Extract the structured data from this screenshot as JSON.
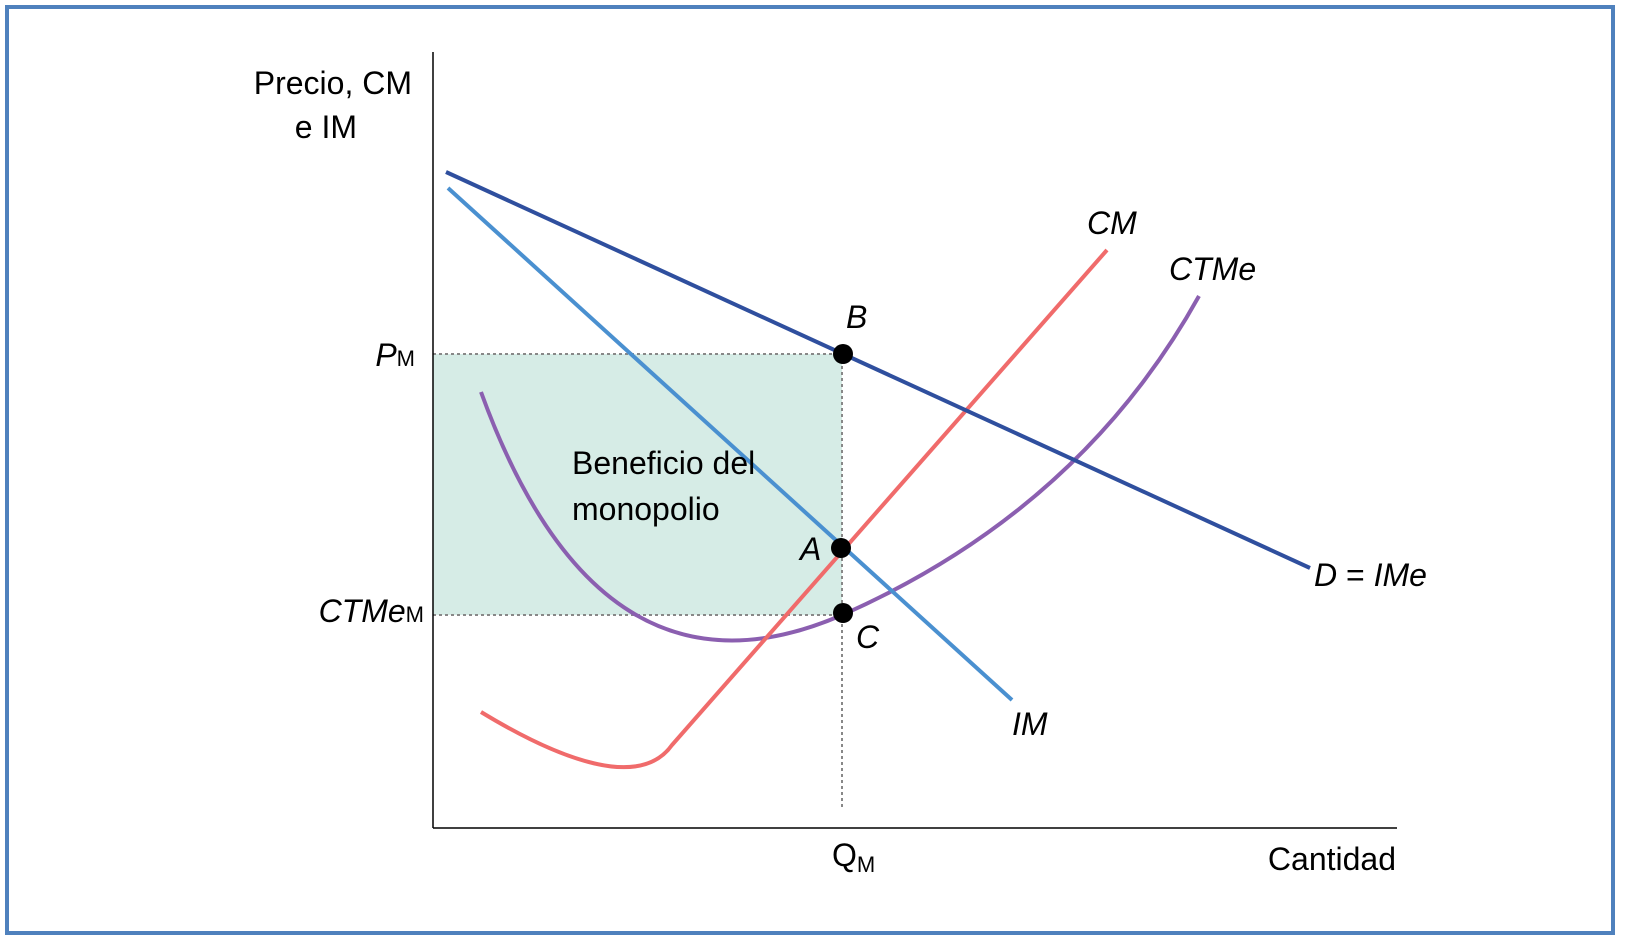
{
  "axes": {
    "y_label_line1": "Precio, CM",
    "y_label_line2": "e IM",
    "x_label": "Cantidad"
  },
  "ticks": {
    "pm_main": "P",
    "pm_sub": "M",
    "ctme_main": "CTMe",
    "ctme_sub": "M",
    "qm_main": "Q",
    "qm_sub": "M"
  },
  "curves": {
    "cm": "CM",
    "ctme": "CTMe",
    "im": "IM",
    "demand_d": "D",
    "demand_eq": " = ",
    "demand_ime": "IMe"
  },
  "points": {
    "a": "A",
    "b": "B",
    "c": "C"
  },
  "region": {
    "line1": "Beneficio del",
    "line2": "monopolio"
  },
  "colors": {
    "frame": "#4F81BD",
    "demand": "#2F4F9E",
    "im": "#4A90D0",
    "cm": "#F06B6B",
    "ctme": "#8B5FB0",
    "profit_fill": "#D6ECE6"
  }
}
